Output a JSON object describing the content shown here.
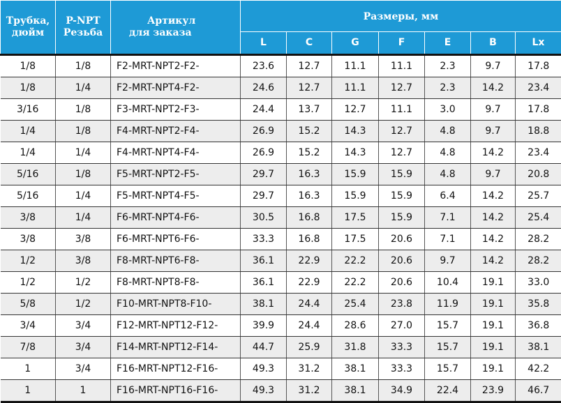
{
  "colors": {
    "header_bg": "#1E9AD6",
    "header_text": "#FFFFFF",
    "stripe": "#EDEDED"
  },
  "header": {
    "tube": "Трубка, дюйм",
    "thread_line1": "P-NPT",
    "thread_line2": "Резьба",
    "article_line1": "Артикул",
    "article_line2": "для заказа",
    "dims": "Размеры, мм",
    "dim_cols": [
      "L",
      "C",
      "G",
      "F",
      "E",
      "B",
      "Lx"
    ]
  },
  "rows": [
    [
      "1/8",
      "1/8",
      "F2-MRT-NPT2-F2-",
      "23.6",
      "12.7",
      "11.1",
      "11.1",
      "2.3",
      "9.7",
      "17.8"
    ],
    [
      "1/8",
      "1/4",
      "F2-MRT-NPT4-F2-",
      "24.6",
      "12.7",
      "11.1",
      "12.7",
      "2.3",
      "14.2",
      "23.4"
    ],
    [
      "3/16",
      "1/8",
      "F3-MRT-NPT2-F3-",
      "24.4",
      "13.7",
      "12.7",
      "11.1",
      "3.0",
      "9.7",
      "17.8"
    ],
    [
      "1/4",
      "1/8",
      "F4-MRT-NPT2-F4-",
      "26.9",
      "15.2",
      "14.3",
      "12.7",
      "4.8",
      "9.7",
      "18.8"
    ],
    [
      "1/4",
      "1/4",
      "F4-MRT-NPT4-F4-",
      "26.9",
      "15.2",
      "14.3",
      "12.7",
      "4.8",
      "14.2",
      "23.4"
    ],
    [
      "5/16",
      "1/8",
      "F5-MRT-NPT2-F5-",
      "29.7",
      "16.3",
      "15.9",
      "15.9",
      "4.8",
      "9.7",
      "20.8"
    ],
    [
      "5/16",
      "1/4",
      "F5-MRT-NPT4-F5-",
      "29.7",
      "16.3",
      "15.9",
      "15.9",
      "6.4",
      "14.2",
      "25.7"
    ],
    [
      "3/8",
      "1/4",
      "F6-MRT-NPT4-F6-",
      "30.5",
      "16.8",
      "17.5",
      "15.9",
      "7.1",
      "14.2",
      "25.4"
    ],
    [
      "3/8",
      "3/8",
      "F6-MRT-NPT6-F6-",
      "33.3",
      "16.8",
      "17.5",
      "20.6",
      "7.1",
      "14.2",
      "28.2"
    ],
    [
      "1/2",
      "3/8",
      "F8-MRT-NPT6-F8-",
      "36.1",
      "22.9",
      "22.2",
      "20.6",
      "9.7",
      "14.2",
      "28.2"
    ],
    [
      "1/2",
      "1/2",
      "F8-MRT-NPT8-F8-",
      "36.1",
      "22.9",
      "22.2",
      "20.6",
      "10.4",
      "19.1",
      "33.0"
    ],
    [
      "5/8",
      "1/2",
      "F10-MRT-NPT8-F10-",
      "38.1",
      "24.4",
      "25.4",
      "23.8",
      "11.9",
      "19.1",
      "35.8"
    ],
    [
      "3/4",
      "3/4",
      "F12-MRT-NPT12-F12-",
      "39.9",
      "24.4",
      "28.6",
      "27.0",
      "15.7",
      "19.1",
      "36.8"
    ],
    [
      "7/8",
      "3/4",
      "F14-MRT-NPT12-F14-",
      "44.7",
      "25.9",
      "31.8",
      "33.3",
      "15.7",
      "19.1",
      "38.1"
    ],
    [
      "1",
      "3/4",
      "F16-MRT-NPT12-F16-",
      "49.3",
      "31.2",
      "38.1",
      "33.3",
      "15.7",
      "19.1",
      "42.2"
    ],
    [
      "1",
      "1",
      "F16-MRT-NPT16-F16-",
      "49.3",
      "31.2",
      "38.1",
      "34.9",
      "22.4",
      "23.9",
      "46.7"
    ]
  ]
}
